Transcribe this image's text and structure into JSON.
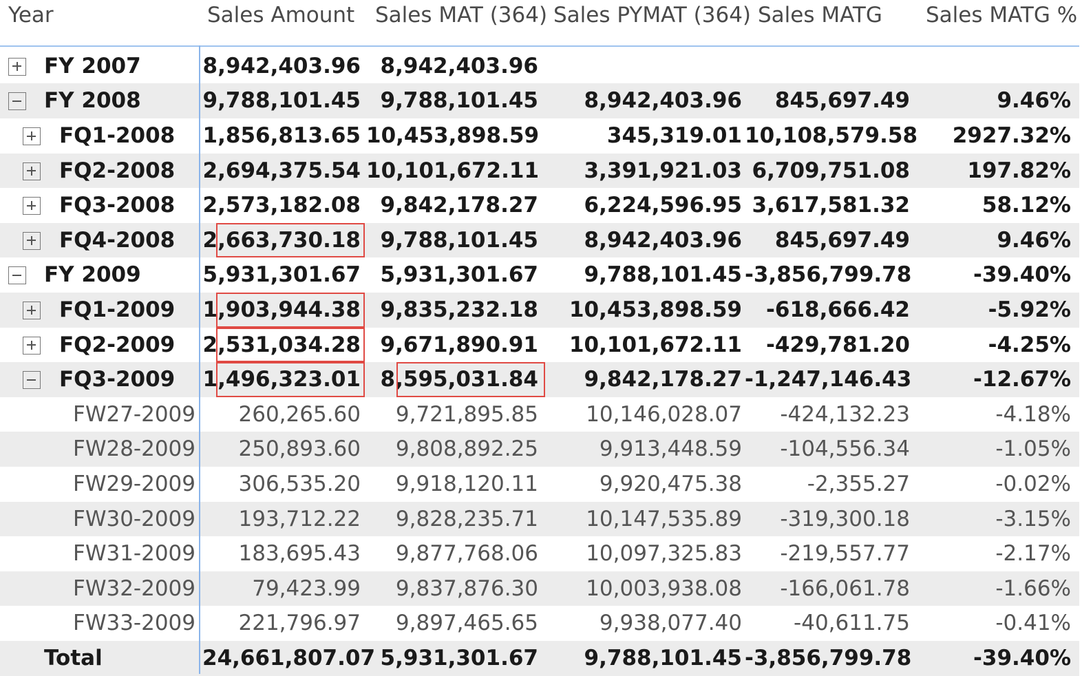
{
  "matrix": {
    "columns": [
      "Year",
      "Sales Amount",
      "Sales MAT (364)",
      "Sales PYMAT (364)",
      "Sales MATG",
      "Sales MATG %"
    ],
    "rows": [
      {
        "label": "FY 2007",
        "level": 0,
        "toggle": "expand",
        "values": [
          "8,942,403.96",
          "8,942,403.96",
          "",
          "",
          ""
        ]
      },
      {
        "label": "FY 2008",
        "level": 0,
        "toggle": "collapse",
        "values": [
          "9,788,101.45",
          "9,788,101.45",
          "8,942,403.96",
          "845,697.49",
          "9.46%"
        ]
      },
      {
        "label": "FQ1-2008",
        "level": 1,
        "toggle": "expand",
        "values": [
          "1,856,813.65",
          "10,453,898.59",
          "345,319.01",
          "10,108,579.58",
          "2927.32%"
        ]
      },
      {
        "label": "FQ2-2008",
        "level": 1,
        "toggle": "expand",
        "values": [
          "2,694,375.54",
          "10,101,672.11",
          "3,391,921.03",
          "6,709,751.08",
          "197.82%"
        ]
      },
      {
        "label": "FQ3-2008",
        "level": 1,
        "toggle": "expand",
        "values": [
          "2,573,182.08",
          "9,842,178.27",
          "6,224,596.95",
          "3,617,581.32",
          "58.12%"
        ]
      },
      {
        "label": "FQ4-2008",
        "level": 1,
        "toggle": "expand",
        "values": [
          "2,663,730.18",
          "9,788,101.45",
          "8,942,403.96",
          "845,697.49",
          "9.46%"
        ]
      },
      {
        "label": "FY 2009",
        "level": 0,
        "toggle": "collapse",
        "values": [
          "5,931,301.67",
          "5,931,301.67",
          "9,788,101.45",
          "-3,856,799.78",
          "-39.40%"
        ]
      },
      {
        "label": "FQ1-2009",
        "level": 1,
        "toggle": "expand",
        "values": [
          "1,903,944.38",
          "9,835,232.18",
          "10,453,898.59",
          "-618,666.42",
          "-5.92%"
        ]
      },
      {
        "label": "FQ2-2009",
        "level": 1,
        "toggle": "expand",
        "values": [
          "2,531,034.28",
          "9,671,890.91",
          "10,101,672.11",
          "-429,781.20",
          "-4.25%"
        ]
      },
      {
        "label": "FQ3-2009",
        "level": 1,
        "toggle": "collapse",
        "values": [
          "1,496,323.01",
          "8,595,031.84",
          "9,842,178.27",
          "-1,247,146.43",
          "-12.67%"
        ]
      },
      {
        "label": "FW27-2009",
        "level": 2,
        "toggle": "none",
        "values": [
          "260,265.60",
          "9,721,895.85",
          "10,146,028.07",
          "-424,132.23",
          "-4.18%"
        ]
      },
      {
        "label": "FW28-2009",
        "level": 2,
        "toggle": "none",
        "values": [
          "250,893.60",
          "9,808,892.25",
          "9,913,448.59",
          "-104,556.34",
          "-1.05%"
        ]
      },
      {
        "label": "FW29-2009",
        "level": 2,
        "toggle": "none",
        "values": [
          "306,535.20",
          "9,918,120.11",
          "9,920,475.38",
          "-2,355.27",
          "-0.02%"
        ]
      },
      {
        "label": "FW30-2009",
        "level": 2,
        "toggle": "none",
        "values": [
          "193,712.22",
          "9,828,235.71",
          "10,147,535.89",
          "-319,300.18",
          "-3.15%"
        ]
      },
      {
        "label": "FW31-2009",
        "level": 2,
        "toggle": "none",
        "values": [
          "183,695.43",
          "9,877,768.06",
          "10,097,325.83",
          "-219,557.77",
          "-2.17%"
        ]
      },
      {
        "label": "FW32-2009",
        "level": 2,
        "toggle": "none",
        "values": [
          "79,423.99",
          "9,837,876.30",
          "10,003,938.08",
          "-166,061.78",
          "-1.66%"
        ]
      },
      {
        "label": "FW33-2009",
        "level": 2,
        "toggle": "none",
        "values": [
          "221,796.97",
          "9,897,465.65",
          "9,938,077.40",
          "-40,611.75",
          "-0.41%"
        ]
      }
    ],
    "total": {
      "label": "Total",
      "values": [
        "24,661,807.07",
        "5,931,301.67",
        "9,788,101.45",
        "-3,856,799.78",
        "-39.40%"
      ]
    },
    "highlighted_cells": [
      {
        "row": "FQ4-2008",
        "column": "Sales Amount"
      },
      {
        "row": "FQ1-2009",
        "column": "Sales Amount"
      },
      {
        "row": "FQ2-2009",
        "column": "Sales Amount"
      },
      {
        "row": "FQ3-2009",
        "column": "Sales Amount"
      },
      {
        "row": "FQ3-2009",
        "column": "Sales MAT (364)"
      }
    ],
    "colors": {
      "highlight_border": "#e04a44",
      "alt_row": "#ececec",
      "divider": "#8ab4ea"
    }
  }
}
